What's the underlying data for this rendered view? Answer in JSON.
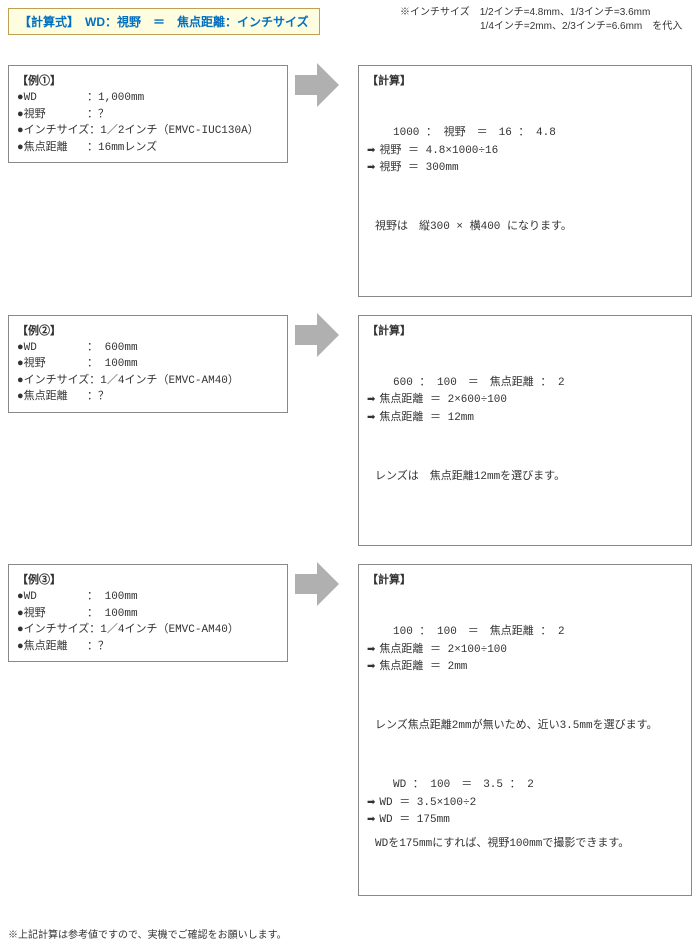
{
  "formula": "【計算式】　WD：視野　＝　焦点距離：インチサイズ",
  "topnote1": "※インチサイズ　1/2インチ=4.8mm、1/3インチ=3.6mm",
  "topnote2": "　　　　　　　　1/4インチ=2mm、2/3インチ=6.6mm　を代入",
  "examples": [
    {
      "title": "【例①】",
      "params": [
        {
          "label": "●WD",
          "value": "：1,000mm"
        },
        {
          "label": "●視野",
          "value": "：？"
        },
        {
          "label": "●インチサイズ",
          "value": "：1／2インチ（EMVC-IUC130A）"
        },
        {
          "label": "●焦点距離",
          "value": "：16mmレンズ"
        }
      ],
      "calc_title": "【計算】",
      "calc_lines": [
        {
          "text": "1000 ： 視野　＝　16 ： 4.8",
          "bullet": false,
          "indent": true
        },
        {
          "text": "視野 ＝ 4.8×1000÷16",
          "bullet": true
        },
        {
          "text": "視野 ＝ 300mm",
          "bullet": true
        }
      ],
      "result": "視野は　縦300 × 横400 になります。"
    },
    {
      "title": "【例②】",
      "params": [
        {
          "label": "●WD",
          "value": "： 600mm"
        },
        {
          "label": "●視野",
          "value": "： 100mm"
        },
        {
          "label": "●インチサイズ",
          "value": "：1／4インチ（EMVC-AM40）"
        },
        {
          "label": "●焦点距離",
          "value": "：？"
        }
      ],
      "calc_title": "【計算】",
      "calc_lines": [
        {
          "text": "600 ： 100　＝　焦点距離 ： 2",
          "bullet": false,
          "indent": true
        },
        {
          "text": "焦点距離 ＝ 2×600÷100",
          "bullet": true
        },
        {
          "text": "焦点距離 ＝ 12mm",
          "bullet": true
        }
      ],
      "result": "レンズは　焦点距離12mmを選びます。"
    },
    {
      "title": "【例③】",
      "params": [
        {
          "label": "●WD",
          "value": "： 100mm"
        },
        {
          "label": "●視野",
          "value": "： 100mm"
        },
        {
          "label": "●インチサイズ",
          "value": "：1／4インチ（EMVC-AM40）"
        },
        {
          "label": "●焦点距離",
          "value": "：？"
        }
      ],
      "calc_title": "【計算】",
      "calc_lines": [
        {
          "text": "100 ： 100　＝　焦点距離 ： 2",
          "bullet": false,
          "indent": true
        },
        {
          "text": "焦点距離 ＝ 2×100÷100",
          "bullet": true
        },
        {
          "text": "焦点距離 ＝ 2mm",
          "bullet": true
        }
      ],
      "result": "レンズ焦点距離2mmが無いため、近い3.5mmを選びます。",
      "calc_lines2": [
        {
          "text": "WD ： 100　＝　3.5 ： 2",
          "bullet": false,
          "indent": true
        },
        {
          "text": "WD ＝ 3.5×100÷2",
          "bullet": true
        },
        {
          "text": "WD ＝ 175mm",
          "bullet": true
        }
      ],
      "result2": "WDを175mmにすれば、視野100mmで撮影できます。"
    }
  ],
  "footnote": "※上記計算は参考値ですので、実機でご確認をお願いします。"
}
